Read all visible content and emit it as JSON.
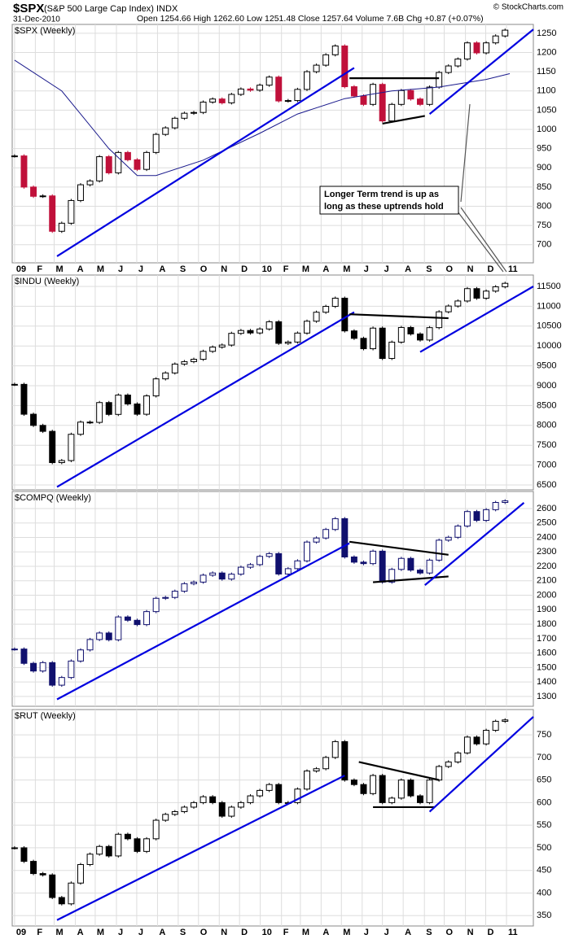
{
  "header": {
    "symbol": "$SPX",
    "name": "(S&P 500 Large Cap Index) INDX",
    "date": "31-Dec-2010",
    "quote": "Open 1254.66 High 1262.60 Low 1251.48 Close 1257.64 Volume 7.6B Chg +0.87 (+0.07%)",
    "source": "© StockCharts.com"
  },
  "annotation": [
    "Longer Term trend is up as",
    "long as these uptrends hold"
  ],
  "chart_data": [
    {
      "type": "candlestick",
      "title": "$SPX (Weekly)",
      "color": "#000000",
      "down_color": "#c0103a",
      "x": [
        0,
        2,
        4,
        6,
        8,
        10,
        12,
        14,
        16,
        18,
        20,
        22,
        24,
        26,
        28,
        30,
        32,
        34,
        36,
        38,
        40,
        42,
        44,
        46,
        48,
        50,
        52,
        54,
        56,
        58,
        60,
        62,
        64,
        66,
        68,
        70,
        72,
        74,
        76,
        78,
        80,
        82,
        84,
        86,
        88,
        90,
        92,
        94,
        96,
        98,
        100,
        102,
        104
      ],
      "close": [
        931,
        850,
        826,
        827,
        735,
        756,
        815,
        856,
        866,
        929,
        887,
        940,
        921,
        896,
        940,
        987,
        1004,
        1029,
        1042,
        1044,
        1071,
        1079,
        1069,
        1091,
        1105,
        1102,
        1115,
        1136,
        1074,
        1075,
        1104,
        1150,
        1167,
        1194,
        1217,
        1111,
        1087,
        1065,
        1117,
        1022,
        1065,
        1101,
        1079,
        1065,
        1110,
        1148,
        1165,
        1183,
        1225,
        1199,
        1225,
        1243,
        1258
      ],
      "ma": {
        "x": [
          0,
          10,
          20,
          26,
          30,
          40,
          52,
          60,
          70,
          80,
          90,
          100,
          105
        ],
        "values": [
          1180,
          1100,
          950,
          880,
          880,
          920,
          990,
          1040,
          1080,
          1100,
          1110,
          1130,
          1145
        ],
        "color": "#1a1a8c"
      },
      "trendlines": [
        {
          "x": [
            9,
            72
          ],
          "y": [
            670,
            1160
          ],
          "color": "#0000e0"
        },
        {
          "x": [
            71,
            90
          ],
          "y": [
            1133,
            1133
          ],
          "color": "#000000"
        },
        {
          "x": [
            78,
            87
          ],
          "y": [
            1015,
            1035
          ],
          "color": "#000000"
        },
        {
          "x": [
            88,
            110
          ],
          "y": [
            1040,
            1260
          ],
          "color": "#0000e0"
        }
      ],
      "xlim": [
        -0.5,
        110
      ],
      "ylim": [
        653,
        1273
      ],
      "yticks": [
        700,
        750,
        800,
        850,
        900,
        950,
        1000,
        1050,
        1100,
        1150,
        1200,
        1250
      ],
      "xticks": [
        {
          "value": 0,
          "label": "09"
        },
        {
          "value": 4.4,
          "label": "F"
        },
        {
          "value": 8.4,
          "label": "M"
        },
        {
          "value": 12.9,
          "label": "A"
        },
        {
          "value": 17.1,
          "label": "M"
        },
        {
          "value": 21.6,
          "label": "J"
        },
        {
          "value": 25.9,
          "label": "J"
        },
        {
          "value": 30.3,
          "label": "A"
        },
        {
          "value": 34.7,
          "label": "S"
        },
        {
          "value": 39,
          "label": "O"
        },
        {
          "value": 43.4,
          "label": "N"
        },
        {
          "value": 47.7,
          "label": "D"
        },
        {
          "value": 52.1,
          "label": "10"
        },
        {
          "value": 56.6,
          "label": "F"
        },
        {
          "value": 60.6,
          "label": "M"
        },
        {
          "value": 65,
          "label": "A"
        },
        {
          "value": 69.3,
          "label": "M"
        },
        {
          "value": 73.7,
          "label": "J"
        },
        {
          "value": 78,
          "label": "J"
        },
        {
          "value": 82.4,
          "label": "A"
        },
        {
          "value": 86.9,
          "label": "S"
        },
        {
          "value": 91.1,
          "label": "O"
        },
        {
          "value": 95.6,
          "label": "N"
        },
        {
          "value": 99.9,
          "label": "D"
        },
        {
          "value": 104.3,
          "label": "11"
        }
      ],
      "grid": true
    },
    {
      "type": "candlestick",
      "title": "$INDU (Weekly)",
      "color": "#000000",
      "down_color": "#000000",
      "x": [
        0,
        2,
        4,
        6,
        8,
        10,
        12,
        14,
        16,
        18,
        20,
        22,
        24,
        26,
        28,
        30,
        32,
        34,
        36,
        38,
        40,
        42,
        44,
        46,
        48,
        50,
        52,
        54,
        56,
        58,
        60,
        62,
        64,
        66,
        68,
        70,
        72,
        74,
        76,
        78,
        80,
        82,
        84,
        86,
        88,
        90,
        92,
        94,
        96,
        98,
        100,
        102,
        104
      ],
      "close": [
        9034,
        8281,
        8000,
        7850,
        7063,
        7114,
        7776,
        8083,
        8076,
        8575,
        8277,
        8764,
        8540,
        8281,
        8743,
        9172,
        9321,
        9545,
        9606,
        9665,
        9865,
        9972,
        10023,
        10318,
        10389,
        10328,
        10428,
        10610,
        10067,
        10099,
        10325,
        10624,
        10850,
        10997,
        11204,
        10380,
        10193,
        9931,
        10450,
        9686,
        10097,
        10466,
        10303,
        10150,
        10462,
        10861,
        11006,
        11133,
        11444,
        11204,
        11382,
        11491,
        11578
      ],
      "trendlines": [
        {
          "x": [
            9,
            72
          ],
          "y": [
            6450,
            10850
          ],
          "color": "#0000e0"
        },
        {
          "x": [
            71,
            92
          ],
          "y": [
            10800,
            10700
          ],
          "color": "#000000"
        },
        {
          "x": [
            86,
            110
          ],
          "y": [
            9850,
            11500
          ],
          "color": "#0000e0"
        }
      ],
      "xlim": [
        -0.5,
        110
      ],
      "ylim": [
        6377,
        11787
      ],
      "yticks": [
        6500,
        7000,
        7500,
        8000,
        8500,
        9000,
        9500,
        10000,
        10500,
        11000,
        11500
      ],
      "grid": true
    },
    {
      "type": "candlestick",
      "title": "$COMPQ (Weekly)",
      "color": "#10106e",
      "down_color": "#10106e",
      "x": [
        0,
        2,
        4,
        6,
        8,
        10,
        12,
        14,
        16,
        18,
        20,
        22,
        24,
        26,
        28,
        30,
        32,
        34,
        36,
        38,
        40,
        42,
        44,
        46,
        48,
        50,
        52,
        54,
        56,
        58,
        60,
        62,
        64,
        66,
        68,
        70,
        72,
        74,
        76,
        78,
        80,
        82,
        84,
        86,
        88,
        90,
        92,
        94,
        96,
        98,
        100,
        102,
        104
      ],
      "close": [
        1628,
        1529,
        1476,
        1534,
        1378,
        1431,
        1545,
        1622,
        1694,
        1739,
        1692,
        1850,
        1827,
        1797,
        1887,
        1979,
        1985,
        2028,
        2080,
        2091,
        2139,
        2154,
        2112,
        2146,
        2194,
        2212,
        2269,
        2288,
        2147,
        2184,
        2238,
        2368,
        2396,
        2455,
        2530,
        2265,
        2229,
        2219,
        2305,
        2091,
        2179,
        2255,
        2174,
        2154,
        2243,
        2381,
        2401,
        2479,
        2579,
        2518,
        2592,
        2642,
        2653
      ],
      "trendlines": [
        {
          "x": [
            9,
            71
          ],
          "y": [
            1280,
            2360
          ],
          "color": "#0000e0"
        },
        {
          "x": [
            71,
            92
          ],
          "y": [
            2370,
            2280
          ],
          "color": "#000000"
        },
        {
          "x": [
            76,
            92
          ],
          "y": [
            2090,
            2130
          ],
          "color": "#000000"
        },
        {
          "x": [
            87,
            108
          ],
          "y": [
            2070,
            2640
          ],
          "color": "#0000e0"
        }
      ],
      "xlim": [
        -0.5,
        110
      ],
      "ylim": [
        1232,
        2718
      ],
      "yticks": [
        1300,
        1400,
        1500,
        1600,
        1700,
        1800,
        1900,
        2000,
        2100,
        2200,
        2300,
        2400,
        2500,
        2600
      ],
      "grid": true
    },
    {
      "type": "candlestick",
      "title": "$RUT (Weekly)",
      "color": "#000000",
      "down_color": "#000000",
      "x": [
        0,
        2,
        4,
        6,
        8,
        10,
        12,
        14,
        16,
        18,
        20,
        22,
        24,
        26,
        28,
        30,
        32,
        34,
        36,
        38,
        40,
        42,
        44,
        46,
        48,
        50,
        52,
        54,
        56,
        58,
        60,
        62,
        64,
        66,
        68,
        70,
        72,
        74,
        76,
        78,
        80,
        82,
        84,
        86,
        88,
        90,
        92,
        94,
        96,
        98,
        100,
        102,
        104
      ],
      "close": [
        500,
        470,
        443,
        440,
        390,
        376,
        422,
        463,
        486,
        503,
        482,
        530,
        520,
        492,
        520,
        561,
        574,
        580,
        590,
        600,
        613,
        600,
        570,
        590,
        600,
        615,
        627,
        640,
        600,
        600,
        630,
        670,
        675,
        700,
        735,
        650,
        640,
        620,
        660,
        600,
        610,
        650,
        615,
        600,
        650,
        680,
        690,
        710,
        745,
        730,
        760,
        780,
        783
      ],
      "trendlines": [
        {
          "x": [
            9,
            70
          ],
          "y": [
            340,
            660
          ],
          "color": "#0000e0"
        },
        {
          "x": [
            73,
            90
          ],
          "y": [
            690,
            650
          ],
          "color": "#000000"
        },
        {
          "x": [
            76,
            89
          ],
          "y": [
            590,
            590
          ],
          "color": "#000000"
        },
        {
          "x": [
            88,
            110
          ],
          "y": [
            580,
            790
          ],
          "color": "#0000e0"
        }
      ],
      "xlim": [
        -0.5,
        110
      ],
      "ylim": [
        327,
        806
      ],
      "yticks": [
        350,
        400,
        450,
        500,
        550,
        600,
        650,
        700,
        750
      ],
      "xticks": [
        {
          "value": 0,
          "label": "09"
        },
        {
          "value": 4.4,
          "label": "F"
        },
        {
          "value": 8.4,
          "label": "M"
        },
        {
          "value": 12.9,
          "label": "A"
        },
        {
          "value": 17.1,
          "label": "M"
        },
        {
          "value": 21.6,
          "label": "J"
        },
        {
          "value": 25.9,
          "label": "J"
        },
        {
          "value": 30.3,
          "label": "A"
        },
        {
          "value": 34.7,
          "label": "S"
        },
        {
          "value": 39,
          "label": "O"
        },
        {
          "value": 43.4,
          "label": "N"
        },
        {
          "value": 47.7,
          "label": "D"
        },
        {
          "value": 52.1,
          "label": "10"
        },
        {
          "value": 56.6,
          "label": "F"
        },
        {
          "value": 60.6,
          "label": "M"
        },
        {
          "value": 65,
          "label": "A"
        },
        {
          "value": 69.3,
          "label": "M"
        },
        {
          "value": 73.7,
          "label": "J"
        },
        {
          "value": 78,
          "label": "J"
        },
        {
          "value": 82.4,
          "label": "A"
        },
        {
          "value": 86.9,
          "label": "S"
        },
        {
          "value": 91.1,
          "label": "O"
        },
        {
          "value": 95.6,
          "label": "N"
        },
        {
          "value": 99.9,
          "label": "D"
        },
        {
          "value": 104.3,
          "label": "11"
        }
      ],
      "grid": true
    }
  ]
}
